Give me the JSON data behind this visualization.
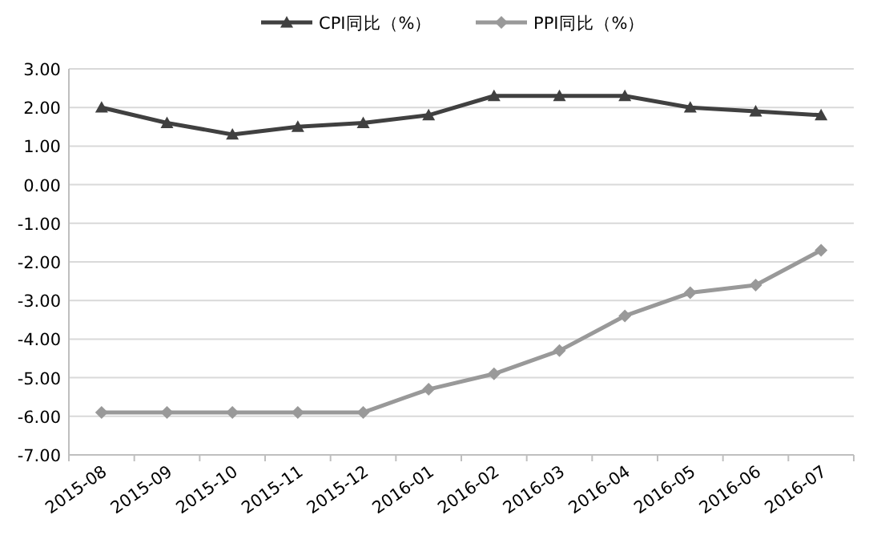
{
  "chart_data": {
    "type": "line",
    "categories": [
      "2015-08",
      "2015-09",
      "2015-10",
      "2015-11",
      "2015-12",
      "2016-01",
      "2016-02",
      "2016-03",
      "2016-04",
      "2016-05",
      "2016-06",
      "2016-07"
    ],
    "series": [
      {
        "name": "CPI同比（%）",
        "color": "#404040",
        "marker": "triangle",
        "values": [
          2.0,
          1.6,
          1.3,
          1.5,
          1.6,
          1.8,
          2.3,
          2.3,
          2.3,
          2.0,
          1.9,
          1.8
        ]
      },
      {
        "name": "PPI同比（%）",
        "color": "#999999",
        "marker": "diamond",
        "values": [
          -5.9,
          -5.9,
          -5.9,
          -5.9,
          -5.9,
          -5.3,
          -4.9,
          -4.3,
          -3.4,
          -2.8,
          -2.6,
          -1.7
        ]
      }
    ],
    "ylim": [
      -7,
      3
    ],
    "yticks": [
      {
        "value": 3,
        "label": "3.00"
      },
      {
        "value": 2,
        "label": "2.00"
      },
      {
        "value": 1,
        "label": "1.00"
      },
      {
        "value": 0,
        "label": "0.00"
      },
      {
        "value": -1,
        "label": "-1.00"
      },
      {
        "value": -2,
        "label": "-2.00"
      },
      {
        "value": -3,
        "label": "-3.00"
      },
      {
        "value": -4,
        "label": "-4.00"
      },
      {
        "value": -5,
        "label": "-5.00"
      },
      {
        "value": -6,
        "label": "-6.00"
      },
      {
        "value": -7,
        "label": "-7.00"
      }
    ],
    "grid": "y",
    "legend": "top"
  }
}
